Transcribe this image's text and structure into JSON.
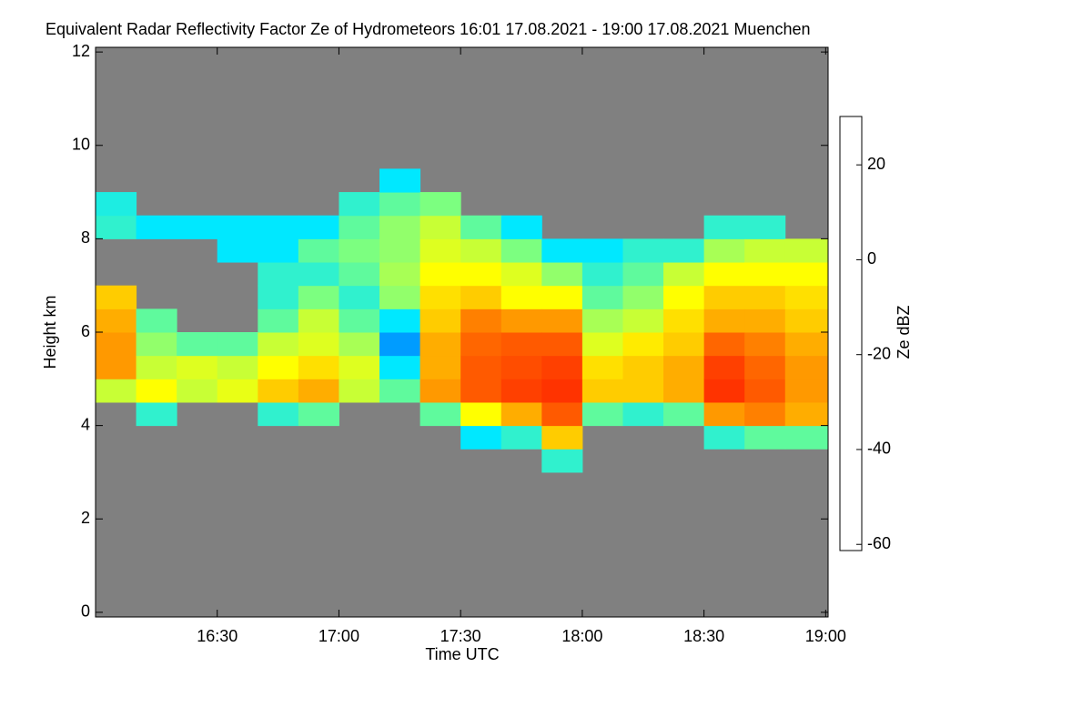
{
  "chart_data": {
    "type": "heatmap",
    "title": "Equivalent Radar Reflectivity Factor Ze of Hydrometeors   16:01 17.08.2021 - 19:00 17.08.2021 Muenchen",
    "x_label": "Time UTC",
    "y_label": "Height km",
    "colorbar_label": "Ze dBZ",
    "background": "#808080",
    "xlim": [
      16.0,
      19.01
    ],
    "ylim": [
      -0.1,
      12.1
    ],
    "zlim": [
      -61.3,
      30.2
    ],
    "xticks": [
      {
        "value": 16.5,
        "label": "16:30"
      },
      {
        "value": 17,
        "label": "17:00"
      },
      {
        "value": 17.5,
        "label": "17:30"
      },
      {
        "value": 18,
        "label": "18:00"
      },
      {
        "value": 18.5,
        "label": "18:30"
      },
      {
        "value": 19,
        "label": "19:00"
      }
    ],
    "yticks": [
      0,
      2,
      4,
      6,
      8,
      10,
      12
    ],
    "zticks": [
      -60,
      -40,
      -20,
      0,
      20
    ],
    "colormap": [
      {
        "value": -61.3,
        "color": "#5a5a78"
      },
      {
        "value": -45,
        "color": "#0000c8"
      },
      {
        "value": -35,
        "color": "#0050ff"
      },
      {
        "value": -25,
        "color": "#00e8ff"
      },
      {
        "value": -12,
        "color": "#7cff80"
      },
      {
        "value": 0,
        "color": "#ffff00"
      },
      {
        "value": 10,
        "color": "#ff9900"
      },
      {
        "value": 20,
        "color": "#ff1a00"
      },
      {
        "value": 30.2,
        "color": "#800000"
      }
    ],
    "x_edges": [
      16.0,
      16.1667,
      16.3333,
      16.5,
      16.6667,
      16.8333,
      17.0,
      17.1667,
      17.3333,
      17.5,
      17.6667,
      17.8333,
      18.0,
      18.1667,
      18.3333,
      18.5,
      18.6667,
      18.8333,
      19.01
    ],
    "y_edges": [
      0,
      0.5,
      1,
      1.5,
      2,
      2.5,
      3,
      3.5,
      4,
      4.5,
      5,
      5.5,
      6,
      6.5,
      7,
      7.5,
      8,
      8.5,
      9,
      9.5,
      10,
      10.5,
      11,
      11.5,
      12
    ],
    "values": [
      [
        null,
        null,
        null,
        null,
        null,
        null,
        null,
        null,
        null,
        -5,
        10,
        10,
        8,
        5,
        null,
        null,
        -20,
        -22,
        null,
        null,
        null,
        null,
        null,
        null
      ],
      [
        null,
        null,
        null,
        null,
        null,
        null,
        null,
        null,
        -20,
        0,
        -5,
        -10,
        -15,
        null,
        null,
        null,
        -25,
        null,
        null,
        null,
        null,
        null,
        null,
        null
      ],
      [
        null,
        null,
        null,
        null,
        null,
        null,
        null,
        null,
        null,
        -5,
        -3,
        -15,
        null,
        null,
        null,
        null,
        -25,
        null,
        null,
        null,
        null,
        null,
        null,
        null
      ],
      [
        null,
        null,
        null,
        null,
        null,
        null,
        null,
        null,
        null,
        -2,
        -5,
        -15,
        null,
        null,
        null,
        -25,
        -25,
        null,
        null,
        null,
        null,
        null,
        null,
        null
      ],
      [
        null,
        null,
        null,
        null,
        null,
        null,
        null,
        null,
        -20,
        5,
        0,
        -5,
        -15,
        -20,
        -20,
        -25,
        -25,
        null,
        null,
        null,
        null,
        null,
        null,
        null
      ],
      [
        null,
        null,
        null,
        null,
        null,
        null,
        null,
        null,
        -15,
        8,
        3,
        -3,
        -5,
        -12,
        -20,
        -15,
        -25,
        null,
        null,
        null,
        null,
        null,
        null,
        null
      ],
      [
        null,
        null,
        null,
        null,
        null,
        null,
        null,
        null,
        null,
        -5,
        -3,
        -8,
        -15,
        -20,
        -15,
        -12,
        -15,
        -20,
        null,
        null,
        null,
        null,
        null,
        null
      ],
      [
        null,
        null,
        null,
        null,
        null,
        null,
        null,
        null,
        null,
        -15,
        -25,
        -30,
        -25,
        -10,
        -8,
        -10,
        -10,
        -15,
        -25,
        null,
        null,
        null,
        null,
        null
      ],
      [
        null,
        null,
        null,
        null,
        null,
        null,
        null,
        null,
        -15,
        10,
        8,
        8,
        5,
        3,
        0,
        -3,
        -5,
        -12,
        null,
        null,
        null,
        null,
        null,
        null
      ],
      [
        null,
        null,
        null,
        null,
        null,
        null,
        null,
        -25,
        0,
        15,
        15,
        14,
        12,
        5,
        0,
        -5,
        -15,
        null,
        null,
        null,
        null,
        null,
        null,
        null
      ],
      [
        null,
        null,
        null,
        null,
        null,
        null,
        null,
        -20,
        8,
        17,
        16,
        15,
        10,
        0,
        -3,
        -12,
        -25,
        null,
        null,
        null,
        null,
        null,
        null,
        null
      ],
      [
        null,
        null,
        null,
        null,
        null,
        null,
        -20,
        5,
        15,
        18,
        17,
        15,
        10,
        0,
        -10,
        -25,
        null,
        null,
        null,
        null,
        null,
        null,
        null,
        null
      ],
      [
        null,
        null,
        null,
        null,
        null,
        null,
        null,
        null,
        -15,
        5,
        3,
        -3,
        -8,
        -15,
        -20,
        -25,
        null,
        null,
        null,
        null,
        null,
        null,
        null,
        null
      ],
      [
        null,
        null,
        null,
        null,
        null,
        null,
        null,
        null,
        -20,
        5,
        5,
        2,
        -5,
        -10,
        -15,
        -20,
        null,
        null,
        null,
        null,
        null,
        null,
        null,
        null
      ],
      [
        null,
        null,
        null,
        null,
        null,
        null,
        null,
        null,
        -15,
        8,
        8,
        5,
        3,
        0,
        -5,
        -20,
        null,
        null,
        null,
        null,
        null,
        null,
        null,
        null
      ],
      [
        null,
        null,
        null,
        null,
        null,
        null,
        null,
        -20,
        10,
        18,
        17,
        14,
        8,
        5,
        0,
        -8,
        -20,
        null,
        null,
        null,
        null,
        null,
        null,
        null
      ],
      [
        null,
        null,
        null,
        null,
        null,
        null,
        null,
        -15,
        12,
        15,
        14,
        12,
        8,
        5,
        0,
        -5,
        -20,
        null,
        null,
        null,
        null,
        null,
        null,
        null
      ],
      [
        null,
        null,
        null,
        null,
        null,
        null,
        null,
        -15,
        8,
        10,
        10,
        8,
        5,
        3,
        0,
        -5,
        null,
        null,
        null,
        null,
        null,
        null,
        null,
        null
      ]
    ]
  }
}
